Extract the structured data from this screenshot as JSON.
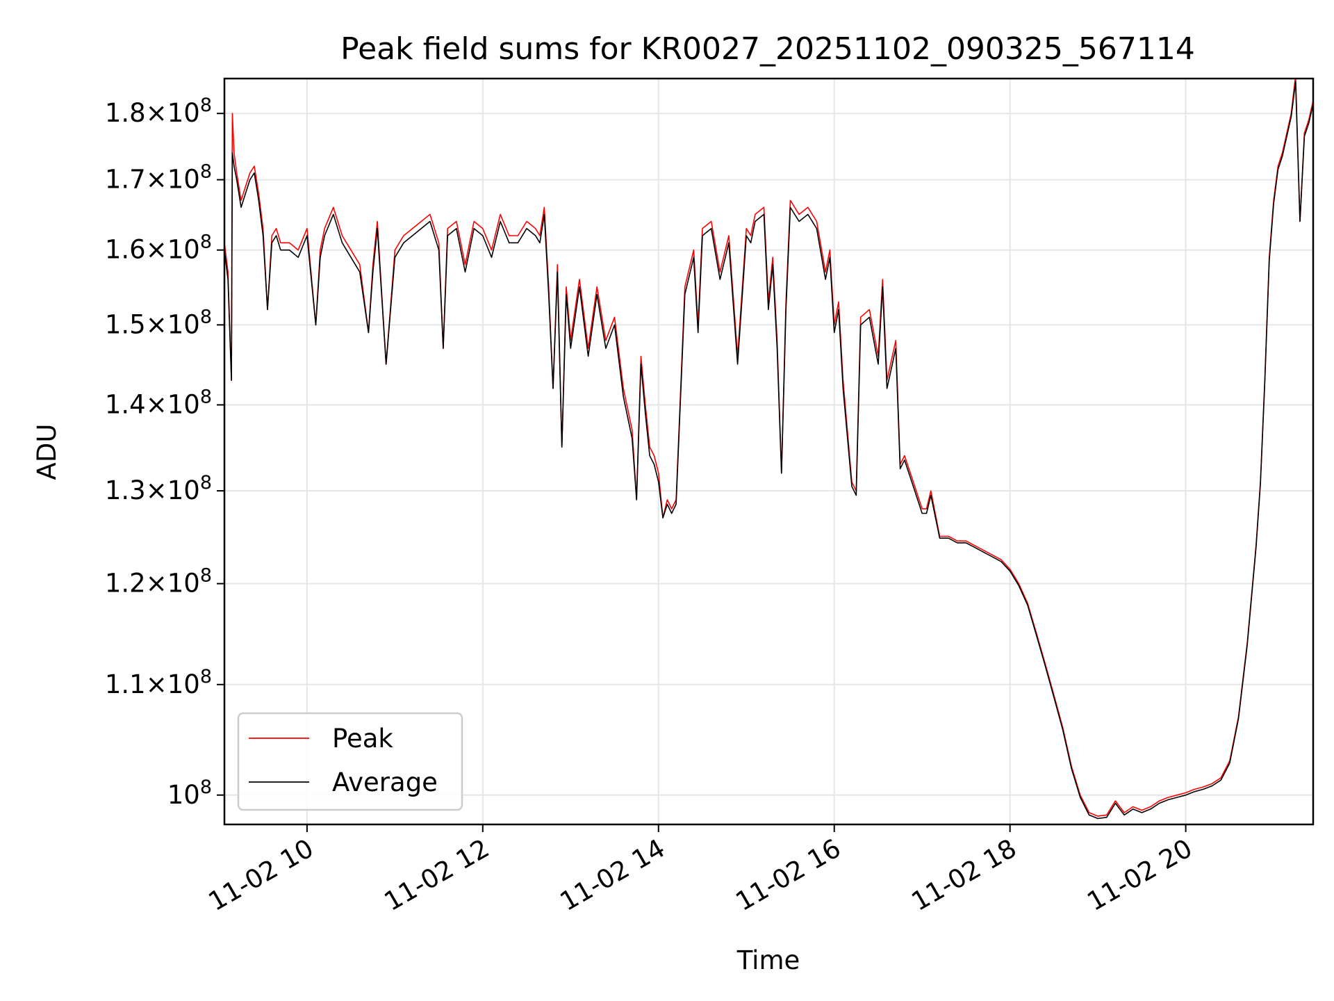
{
  "chart_data": {
    "type": "line",
    "title": "Peak field sums for KR0027_20251102_090325_567114",
    "xlabel": "Time",
    "ylabel": "ADU",
    "yscale": "log",
    "xlim_hours": [
      9.06,
      21.45
    ],
    "ylim": [
      97500000,
      185500000
    ],
    "grid": true,
    "legend_position": "lower-left",
    "x_ticks": [
      {
        "hour": 10,
        "label": "11-02 10"
      },
      {
        "hour": 12,
        "label": "11-02 12"
      },
      {
        "hour": 14,
        "label": "11-02 14"
      },
      {
        "hour": 16,
        "label": "11-02 16"
      },
      {
        "hour": 18,
        "label": "11-02 18"
      },
      {
        "hour": 20,
        "label": "11-02 20"
      }
    ],
    "y_ticks": [
      {
        "value": 100000000,
        "mantissa": "",
        "exponent": "8"
      },
      {
        "value": 110000000,
        "mantissa": "1.1",
        "exponent": "8"
      },
      {
        "value": 120000000,
        "mantissa": "1.2",
        "exponent": "8"
      },
      {
        "value": 130000000,
        "mantissa": "1.3",
        "exponent": "8"
      },
      {
        "value": 140000000,
        "mantissa": "1.4",
        "exponent": "8"
      },
      {
        "value": 150000000,
        "mantissa": "1.5",
        "exponent": "8"
      },
      {
        "value": 160000000,
        "mantissa": "1.6",
        "exponent": "8"
      },
      {
        "value": 170000000,
        "mantissa": "1.7",
        "exponent": "8"
      },
      {
        "value": 180000000,
        "mantissa": "1.8",
        "exponent": "8"
      }
    ],
    "series": [
      {
        "name": "Peak",
        "color": "#ff0000",
        "x": [
          9.06,
          9.1,
          9.14,
          9.15,
          9.17,
          9.2,
          9.25,
          9.3,
          9.35,
          9.4,
          9.45,
          9.5,
          9.55,
          9.6,
          9.65,
          9.7,
          9.8,
          9.9,
          10.0,
          10.1,
          10.15,
          10.2,
          10.3,
          10.4,
          10.5,
          10.6,
          10.7,
          10.75,
          10.8,
          10.9,
          11.0,
          11.1,
          11.2,
          11.3,
          11.4,
          11.5,
          11.55,
          11.6,
          11.7,
          11.8,
          11.9,
          12.0,
          12.1,
          12.2,
          12.3,
          12.4,
          12.5,
          12.6,
          12.65,
          12.7,
          12.75,
          12.8,
          12.85,
          12.9,
          12.95,
          13.0,
          13.1,
          13.2,
          13.3,
          13.4,
          13.5,
          13.6,
          13.7,
          13.75,
          13.8,
          13.85,
          13.9,
          13.95,
          14.0,
          14.05,
          14.1,
          14.15,
          14.2,
          14.3,
          14.4,
          14.45,
          14.5,
          14.6,
          14.7,
          14.8,
          14.9,
          15.0,
          15.05,
          15.1,
          15.2,
          15.25,
          15.3,
          15.35,
          15.4,
          15.45,
          15.5,
          15.6,
          15.7,
          15.8,
          15.9,
          15.95,
          16.0,
          16.05,
          16.1,
          16.2,
          16.25,
          16.3,
          16.4,
          16.5,
          16.55,
          16.6,
          16.7,
          16.75,
          16.8,
          16.9,
          17.0,
          17.05,
          17.1,
          17.2,
          17.3,
          17.4,
          17.5,
          17.6,
          17.7,
          17.8,
          17.9,
          18.0,
          18.1,
          18.2,
          18.3,
          18.4,
          18.5,
          18.6,
          18.7,
          18.8,
          18.9,
          19.0,
          19.1,
          19.2,
          19.3,
          19.4,
          19.5,
          19.6,
          19.7,
          19.8,
          19.9,
          20.0,
          20.1,
          20.2,
          20.3,
          20.4,
          20.5,
          20.6,
          20.7,
          20.8,
          20.85,
          20.9,
          20.95,
          21.0,
          21.05,
          21.1,
          21.15,
          21.2,
          21.25,
          21.3,
          21.35,
          21.4,
          21.45
        ],
        "values": [
          161000000,
          157000000,
          143000000,
          180000000,
          174000000,
          171000000,
          167000000,
          169000000,
          171000000,
          172000000,
          168000000,
          163000000,
          152000000,
          162000000,
          163000000,
          161000000,
          161000000,
          160000000,
          163000000,
          150000000,
          160000000,
          163000000,
          166000000,
          162000000,
          160000000,
          158000000,
          149000000,
          158000000,
          164000000,
          145000000,
          160000000,
          162000000,
          163000000,
          164000000,
          165000000,
          161000000,
          147000000,
          163000000,
          164000000,
          158000000,
          164000000,
          163000000,
          160000000,
          165000000,
          162000000,
          162000000,
          164000000,
          163000000,
          162000000,
          166000000,
          155000000,
          142000000,
          158000000,
          135000000,
          155000000,
          148000000,
          156000000,
          147000000,
          155000000,
          148000000,
          151000000,
          142000000,
          137000000,
          129000000,
          146000000,
          140000000,
          135000000,
          134000000,
          132000000,
          127000000,
          129000000,
          128000000,
          129000000,
          155000000,
          160000000,
          150000000,
          163000000,
          164000000,
          157000000,
          162000000,
          146000000,
          163000000,
          162000000,
          165000000,
          166000000,
          153000000,
          159000000,
          148000000,
          132000000,
          153000000,
          167000000,
          165000000,
          166000000,
          164000000,
          157000000,
          160000000,
          150000000,
          153000000,
          143000000,
          131000000,
          130000000,
          151000000,
          152000000,
          146000000,
          156000000,
          143000000,
          148000000,
          133000000,
          134000000,
          131000000,
          128000000,
          128000000,
          130000000,
          125000000,
          125000000,
          124500000,
          124500000,
          124000000,
          123500000,
          123000000,
          122500000,
          121500000,
          120000000,
          118000000,
          115000000,
          112000000,
          109000000,
          106000000,
          102500000,
          100000000,
          98500000,
          98200000,
          98300000,
          99500000,
          98500000,
          99000000,
          98700000,
          99000000,
          99500000,
          99800000,
          100000000,
          100200000,
          100500000,
          100700000,
          101000000,
          101500000,
          103000000,
          107000000,
          114000000,
          124000000,
          131000000,
          143000000,
          159000000,
          167000000,
          172000000,
          174000000,
          177000000,
          180000000,
          186000000,
          164000000,
          177000000,
          179000000,
          182000000
        ]
      },
      {
        "name": "Average",
        "color": "#000000",
        "x": [
          9.06,
          9.1,
          9.14,
          9.15,
          9.17,
          9.2,
          9.25,
          9.3,
          9.35,
          9.4,
          9.45,
          9.5,
          9.55,
          9.6,
          9.65,
          9.7,
          9.8,
          9.9,
          10.0,
          10.1,
          10.15,
          10.2,
          10.3,
          10.4,
          10.5,
          10.6,
          10.7,
          10.75,
          10.8,
          10.9,
          11.0,
          11.1,
          11.2,
          11.3,
          11.4,
          11.5,
          11.55,
          11.6,
          11.7,
          11.8,
          11.9,
          12.0,
          12.1,
          12.2,
          12.3,
          12.4,
          12.5,
          12.6,
          12.65,
          12.7,
          12.75,
          12.8,
          12.85,
          12.9,
          12.95,
          13.0,
          13.1,
          13.2,
          13.3,
          13.4,
          13.5,
          13.6,
          13.7,
          13.75,
          13.8,
          13.85,
          13.9,
          13.95,
          14.0,
          14.05,
          14.1,
          14.15,
          14.2,
          14.3,
          14.4,
          14.45,
          14.5,
          14.6,
          14.7,
          14.8,
          14.9,
          15.0,
          15.05,
          15.1,
          15.2,
          15.25,
          15.3,
          15.35,
          15.4,
          15.45,
          15.5,
          15.6,
          15.7,
          15.8,
          15.9,
          15.95,
          16.0,
          16.05,
          16.1,
          16.2,
          16.25,
          16.3,
          16.4,
          16.5,
          16.55,
          16.6,
          16.7,
          16.75,
          16.8,
          16.9,
          17.0,
          17.05,
          17.1,
          17.2,
          17.3,
          17.4,
          17.5,
          17.6,
          17.7,
          17.8,
          17.9,
          18.0,
          18.1,
          18.2,
          18.3,
          18.4,
          18.5,
          18.6,
          18.7,
          18.8,
          18.9,
          19.0,
          19.1,
          19.2,
          19.3,
          19.4,
          19.5,
          19.6,
          19.7,
          19.8,
          19.9,
          20.0,
          20.1,
          20.2,
          20.3,
          20.4,
          20.5,
          20.6,
          20.7,
          20.8,
          20.85,
          20.9,
          20.95,
          21.0,
          21.05,
          21.1,
          21.15,
          21.2,
          21.25,
          21.3,
          21.35,
          21.4,
          21.45
        ],
        "values": [
          160000000,
          156000000,
          143000000,
          174000000,
          172000000,
          170000000,
          166000000,
          168000000,
          170000000,
          171000000,
          167000000,
          162000000,
          152000000,
          161000000,
          162000000,
          160000000,
          160000000,
          159000000,
          162000000,
          150000000,
          159000000,
          162000000,
          165000000,
          161000000,
          159000000,
          157000000,
          149000000,
          157000000,
          163000000,
          145000000,
          159000000,
          161000000,
          162000000,
          163000000,
          164000000,
          160000000,
          147000000,
          162000000,
          163000000,
          157000000,
          163000000,
          162000000,
          159000000,
          164000000,
          161000000,
          161000000,
          163000000,
          162000000,
          161000000,
          165000000,
          154000000,
          142000000,
          157000000,
          135000000,
          154000000,
          147000000,
          155000000,
          146000000,
          154000000,
          147000000,
          150000000,
          141000000,
          136000000,
          129000000,
          145000000,
          139000000,
          134000000,
          133000000,
          131000000,
          127000000,
          128500000,
          127500000,
          128500000,
          154000000,
          159000000,
          149000000,
          162000000,
          163000000,
          156000000,
          161000000,
          145000000,
          162000000,
          161000000,
          164000000,
          165000000,
          152000000,
          158000000,
          147000000,
          132000000,
          152000000,
          166000000,
          164000000,
          165000000,
          163000000,
          156000000,
          159000000,
          149000000,
          152000000,
          142000000,
          130500000,
          129500000,
          150000000,
          151000000,
          145000000,
          155000000,
          142000000,
          147000000,
          132500000,
          133500000,
          130500000,
          127500000,
          127500000,
          129500000,
          124800000,
          124800000,
          124300000,
          124300000,
          123800000,
          123300000,
          122800000,
          122300000,
          121300000,
          119800000,
          117800000,
          114800000,
          111800000,
          108800000,
          105800000,
          102300000,
          99800000,
          98300000,
          98000000,
          98100000,
          99300000,
          98300000,
          98800000,
          98500000,
          98800000,
          99300000,
          99600000,
          99800000,
          100000000,
          100300000,
          100500000,
          100800000,
          101300000,
          102800000,
          106800000,
          113800000,
          123800000,
          130800000,
          142800000,
          158500000,
          166500000,
          171500000,
          173500000,
          176500000,
          179500000,
          185000000,
          164000000,
          176500000,
          178500000,
          181500000
        ]
      }
    ]
  }
}
